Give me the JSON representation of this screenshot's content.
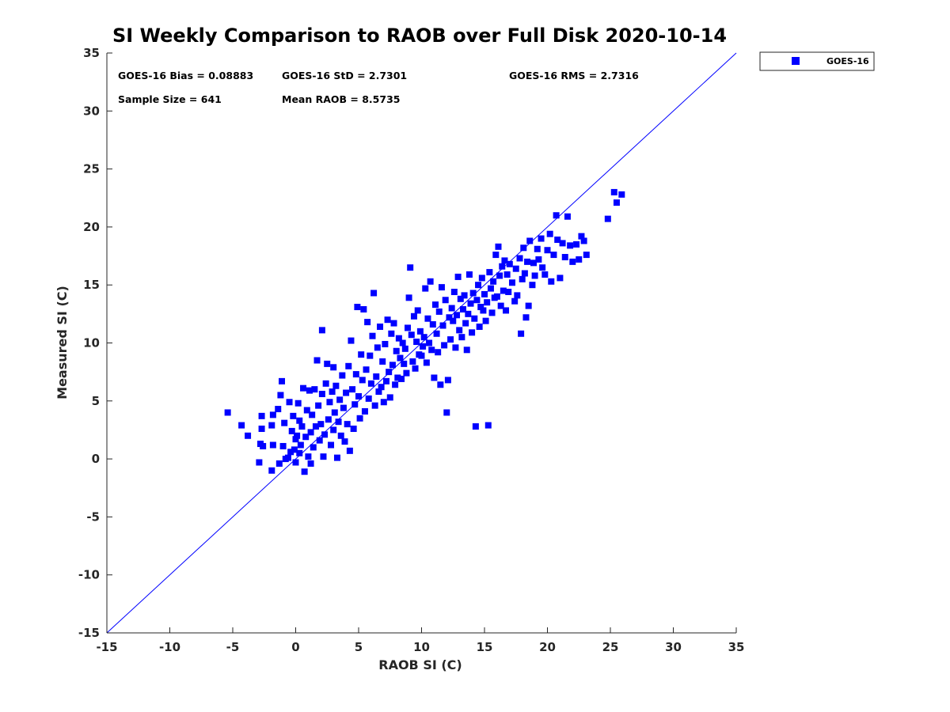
{
  "chart_data": {
    "type": "scatter",
    "title": "SI Weekly Comparison to RAOB over Full Disk 2020-10-14",
    "xlabel": "RAOB SI (C)",
    "ylabel": "Measured SI (C)",
    "xlim": [
      -15,
      35
    ],
    "ylim": [
      -15,
      35
    ],
    "xticks": [
      -15,
      -10,
      -5,
      0,
      5,
      10,
      15,
      20,
      25,
      30,
      35
    ],
    "yticks": [
      -15,
      -10,
      -5,
      0,
      5,
      10,
      15,
      20,
      25,
      30,
      35
    ],
    "grid": false,
    "legend_position": "outside-top-right",
    "reference_line": {
      "name": "1:1",
      "x": [
        -15,
        35
      ],
      "y": [
        -15,
        35
      ],
      "color": "#0000ff"
    },
    "annotations": {
      "bias": "GOES-16 Bias = 0.08883",
      "std": "GOES-16 StD = 2.7301",
      "rms": "GOES-16 RMS = 2.7316",
      "sample": "Sample Size = 641",
      "mean": "Mean RAOB = 8.5735"
    },
    "series": [
      {
        "name": "GOES-16",
        "color": "#0000ff",
        "marker": "square",
        "points": [
          [
            -5.4,
            4.0
          ],
          [
            -4.3,
            2.9
          ],
          [
            -3.8,
            2.0
          ],
          [
            -2.9,
            -0.3
          ],
          [
            -2.8,
            1.3
          ],
          [
            -2.7,
            3.7
          ],
          [
            -2.6,
            1.1
          ],
          [
            -2.7,
            2.6
          ],
          [
            -1.9,
            -1.0
          ],
          [
            -1.8,
            3.8
          ],
          [
            -1.9,
            2.9
          ],
          [
            -1.8,
            1.2
          ],
          [
            -1.4,
            4.3
          ],
          [
            -1.3,
            -0.4
          ],
          [
            -1.2,
            5.5
          ],
          [
            -1.1,
            6.7
          ],
          [
            -1.0,
            1.1
          ],
          [
            -0.9,
            3.1
          ],
          [
            -0.8,
            0.0
          ],
          [
            -0.6,
            0.1
          ],
          [
            -0.5,
            4.9
          ],
          [
            -0.4,
            0.6
          ],
          [
            -0.3,
            2.4
          ],
          [
            -0.2,
            3.7
          ],
          [
            -0.1,
            0.8
          ],
          [
            0.0,
            1.7
          ],
          [
            0.0,
            -0.3
          ],
          [
            0.1,
            2.0
          ],
          [
            0.2,
            4.8
          ],
          [
            0.3,
            0.5
          ],
          [
            0.3,
            3.3
          ],
          [
            0.4,
            1.2
          ],
          [
            0.5,
            2.8
          ],
          [
            0.6,
            6.1
          ],
          [
            0.7,
            -1.1
          ],
          [
            0.8,
            1.9
          ],
          [
            0.9,
            4.2
          ],
          [
            1.0,
            0.2
          ],
          [
            1.1,
            5.9
          ],
          [
            1.2,
            2.3
          ],
          [
            1.2,
            -0.4
          ],
          [
            1.3,
            3.8
          ],
          [
            1.4,
            1.0
          ],
          [
            1.5,
            6.0
          ],
          [
            1.6,
            2.8
          ],
          [
            1.7,
            8.5
          ],
          [
            1.8,
            4.6
          ],
          [
            1.9,
            1.6
          ],
          [
            2.0,
            3.0
          ],
          [
            2.1,
            11.1
          ],
          [
            2.1,
            5.6
          ],
          [
            2.2,
            0.2
          ],
          [
            2.3,
            2.1
          ],
          [
            2.4,
            6.5
          ],
          [
            2.5,
            8.2
          ],
          [
            2.6,
            3.4
          ],
          [
            2.7,
            4.9
          ],
          [
            2.8,
            1.2
          ],
          [
            2.9,
            5.8
          ],
          [
            3.0,
            7.9
          ],
          [
            3.0,
            2.5
          ],
          [
            3.1,
            4.0
          ],
          [
            3.2,
            6.3
          ],
          [
            3.3,
            0.1
          ],
          [
            3.4,
            3.2
          ],
          [
            3.5,
            5.1
          ],
          [
            3.6,
            2.0
          ],
          [
            3.7,
            7.2
          ],
          [
            3.8,
            4.4
          ],
          [
            3.9,
            1.5
          ],
          [
            4.0,
            5.7
          ],
          [
            4.1,
            3.0
          ],
          [
            4.2,
            8.0
          ],
          [
            4.3,
            0.7
          ],
          [
            4.4,
            10.2
          ],
          [
            4.5,
            6.0
          ],
          [
            4.6,
            2.6
          ],
          [
            4.7,
            4.7
          ],
          [
            4.8,
            7.3
          ],
          [
            4.9,
            13.1
          ],
          [
            5.0,
            5.4
          ],
          [
            5.1,
            3.5
          ],
          [
            5.2,
            9.0
          ],
          [
            5.3,
            6.8
          ],
          [
            5.4,
            12.9
          ],
          [
            5.5,
            4.1
          ],
          [
            5.6,
            7.7
          ],
          [
            5.7,
            11.8
          ],
          [
            5.8,
            5.2
          ],
          [
            5.9,
            8.9
          ],
          [
            6.0,
            6.5
          ],
          [
            6.1,
            10.6
          ],
          [
            6.2,
            14.3
          ],
          [
            6.3,
            4.6
          ],
          [
            6.4,
            7.1
          ],
          [
            6.5,
            9.6
          ],
          [
            6.6,
            5.8
          ],
          [
            6.7,
            11.4
          ],
          [
            6.8,
            6.2
          ],
          [
            6.9,
            8.4
          ],
          [
            7.0,
            4.9
          ],
          [
            7.1,
            9.9
          ],
          [
            7.2,
            6.7
          ],
          [
            7.3,
            12.0
          ],
          [
            7.4,
            7.5
          ],
          [
            7.5,
            5.3
          ],
          [
            7.6,
            10.8
          ],
          [
            7.7,
            8.1
          ],
          [
            7.8,
            11.7
          ],
          [
            7.9,
            6.4
          ],
          [
            8.0,
            9.3
          ],
          [
            8.1,
            7.0
          ],
          [
            8.2,
            10.4
          ],
          [
            8.3,
            8.7
          ],
          [
            8.4,
            6.9
          ],
          [
            8.5,
            10.0
          ],
          [
            8.6,
            8.2
          ],
          [
            8.7,
            9.5
          ],
          [
            8.8,
            7.4
          ],
          [
            8.9,
            11.3
          ],
          [
            9.0,
            13.9
          ],
          [
            9.1,
            16.5
          ],
          [
            9.2,
            10.7
          ],
          [
            9.3,
            8.4
          ],
          [
            9.4,
            12.3
          ],
          [
            9.5,
            7.8
          ],
          [
            9.6,
            10.1
          ],
          [
            9.7,
            12.8
          ],
          [
            9.8,
            9.0
          ],
          [
            9.9,
            11.0
          ],
          [
            10.0,
            8.9
          ],
          [
            10.1,
            9.7
          ],
          [
            10.2,
            10.5
          ],
          [
            10.3,
            14.7
          ],
          [
            10.4,
            8.3
          ],
          [
            10.5,
            12.1
          ],
          [
            10.6,
            10.0
          ],
          [
            10.7,
            15.3
          ],
          [
            10.8,
            9.4
          ],
          [
            10.9,
            11.6
          ],
          [
            11.0,
            7.0
          ],
          [
            11.1,
            13.3
          ],
          [
            11.2,
            10.8
          ],
          [
            11.3,
            9.2
          ],
          [
            11.4,
            12.7
          ],
          [
            11.5,
            6.4
          ],
          [
            11.6,
            14.8
          ],
          [
            11.7,
            11.5
          ],
          [
            11.8,
            9.8
          ],
          [
            11.9,
            13.7
          ],
          [
            12.0,
            4.0
          ],
          [
            12.1,
            6.8
          ],
          [
            12.2,
            12.2
          ],
          [
            12.3,
            10.3
          ],
          [
            12.4,
            13.0
          ],
          [
            12.5,
            11.9
          ],
          [
            12.6,
            14.4
          ],
          [
            12.7,
            9.6
          ],
          [
            12.8,
            12.4
          ],
          [
            12.9,
            15.7
          ],
          [
            13.0,
            11.1
          ],
          [
            13.1,
            13.8
          ],
          [
            13.2,
            10.5
          ],
          [
            13.3,
            12.9
          ],
          [
            13.4,
            14.1
          ],
          [
            13.5,
            11.7
          ],
          [
            13.6,
            9.4
          ],
          [
            13.7,
            12.5
          ],
          [
            13.8,
            15.9
          ],
          [
            13.9,
            13.4
          ],
          [
            14.0,
            10.9
          ],
          [
            14.1,
            14.3
          ],
          [
            14.2,
            12.1
          ],
          [
            14.3,
            2.8
          ],
          [
            14.4,
            13.7
          ],
          [
            14.5,
            15.0
          ],
          [
            14.6,
            11.4
          ],
          [
            14.7,
            13.1
          ],
          [
            14.8,
            15.6
          ],
          [
            14.9,
            12.8
          ],
          [
            15.0,
            14.2
          ],
          [
            15.1,
            11.9
          ],
          [
            15.2,
            13.5
          ],
          [
            15.3,
            2.9
          ],
          [
            15.4,
            16.1
          ],
          [
            15.5,
            14.7
          ],
          [
            15.6,
            12.6
          ],
          [
            15.7,
            15.3
          ],
          [
            15.8,
            13.9
          ],
          [
            15.9,
            17.6
          ],
          [
            16.0,
            14.0
          ],
          [
            16.1,
            18.3
          ],
          [
            16.2,
            15.8
          ],
          [
            16.3,
            13.2
          ],
          [
            16.4,
            16.6
          ],
          [
            16.5,
            14.5
          ],
          [
            16.6,
            17.1
          ],
          [
            16.7,
            12.8
          ],
          [
            16.8,
            15.9
          ],
          [
            16.9,
            14.4
          ],
          [
            17.0,
            16.8
          ],
          [
            17.2,
            15.2
          ],
          [
            17.4,
            13.6
          ],
          [
            17.5,
            16.4
          ],
          [
            17.6,
            14.1
          ],
          [
            17.8,
            17.3
          ],
          [
            17.9,
            10.8
          ],
          [
            18.0,
            15.5
          ],
          [
            18.1,
            18.2
          ],
          [
            18.2,
            16.0
          ],
          [
            18.3,
            12.2
          ],
          [
            18.4,
            17.0
          ],
          [
            18.5,
            13.2
          ],
          [
            18.6,
            18.8
          ],
          [
            18.8,
            15.0
          ],
          [
            18.9,
            16.9
          ],
          [
            19.0,
            15.8
          ],
          [
            19.2,
            18.1
          ],
          [
            19.3,
            17.2
          ],
          [
            19.5,
            19.0
          ],
          [
            19.6,
            16.5
          ],
          [
            19.8,
            15.9
          ],
          [
            20.0,
            18.0
          ],
          [
            20.2,
            19.4
          ],
          [
            20.3,
            15.3
          ],
          [
            20.5,
            17.6
          ],
          [
            20.7,
            21.0
          ],
          [
            20.8,
            18.9
          ],
          [
            21.0,
            15.6
          ],
          [
            21.2,
            18.6
          ],
          [
            21.4,
            17.4
          ],
          [
            21.6,
            20.9
          ],
          [
            21.8,
            18.4
          ],
          [
            22.0,
            17.0
          ],
          [
            22.3,
            18.5
          ],
          [
            22.5,
            17.2
          ],
          [
            22.7,
            19.2
          ],
          [
            22.9,
            18.8
          ],
          [
            23.1,
            17.6
          ],
          [
            24.8,
            20.7
          ],
          [
            25.3,
            23.0
          ],
          [
            25.5,
            22.1
          ],
          [
            25.9,
            22.8
          ]
        ]
      }
    ]
  }
}
